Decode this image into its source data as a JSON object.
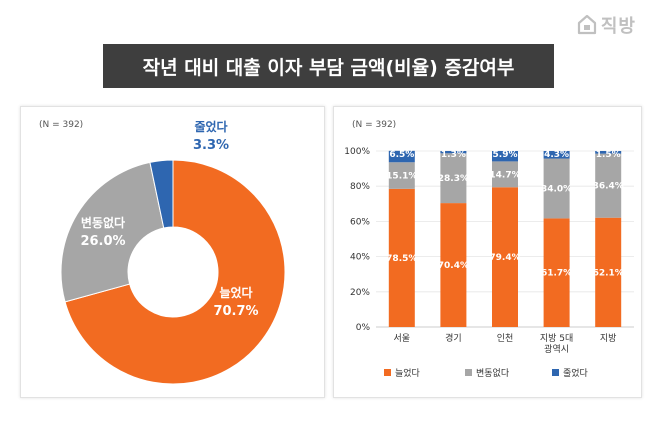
{
  "brand": {
    "name": "직방",
    "icon": "house-icon"
  },
  "title": "작년 대비 대출 이자 부담 금액(비율) 증감여부",
  "colors": {
    "increase": "#f26b21",
    "same": "#a6a6a6",
    "decrease": "#2e66b0",
    "title_bg": "#3e3e3e"
  },
  "chart_data": [
    {
      "type": "pie",
      "donut": true,
      "sample_note": "(N = 392)",
      "slices": [
        {
          "label": "늘었다",
          "value": 70.7,
          "display": "70.7%",
          "color": "#f26b21"
        },
        {
          "label": "변동없다",
          "value": 26.0,
          "display": "26.0%",
          "color": "#a6a6a6"
        },
        {
          "label": "줄었다",
          "value": 3.3,
          "display": "3.3%",
          "color": "#2e66b0"
        }
      ]
    },
    {
      "type": "bar",
      "stacked": true,
      "sample_note": "(N = 392)",
      "categories": [
        "서울",
        "경기",
        "인천",
        "지방 5대\n광역시",
        "지방"
      ],
      "ylim": [
        0,
        100
      ],
      "yticks": [
        "0%",
        "20%",
        "40%",
        "60%",
        "80%",
        "100%"
      ],
      "series": [
        {
          "name": "늘었다",
          "color": "#f26b21",
          "values": [
            78.5,
            70.4,
            79.4,
            61.7,
            62.1
          ],
          "labels": [
            "78.5%",
            "70.4%",
            "79.4%",
            "61.7%",
            "62.1%"
          ]
        },
        {
          "name": "변동없다",
          "color": "#a6a6a6",
          "values": [
            15.1,
            28.3,
            14.7,
            34.0,
            36.4
          ],
          "labels": [
            "15.1%",
            "28.3%",
            "14.7%",
            "34.0%",
            "36.4%"
          ]
        },
        {
          "name": "줄었다",
          "color": "#2e66b0",
          "values": [
            6.5,
            1.3,
            5.9,
            4.3,
            1.5
          ],
          "labels": [
            "6.5%",
            "1.3%",
            "5.9%",
            "4.3%",
            "1.5%"
          ]
        }
      ],
      "legend_position": "bottom"
    }
  ]
}
